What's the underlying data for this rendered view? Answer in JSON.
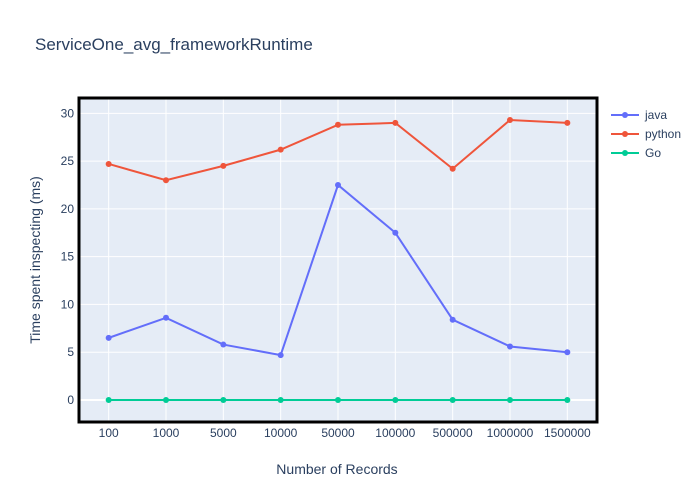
{
  "chart_data": {
    "type": "line",
    "title": "ServiceOne_avg_frameworkRuntime",
    "xlabel": "Number of Records",
    "ylabel": "Time spent inspecting (ms)",
    "categories": [
      "100",
      "1000",
      "5000",
      "10000",
      "50000",
      "100000",
      "500000",
      "1000000",
      "1500000"
    ],
    "ylim": [
      -2.2,
      31.5
    ],
    "yticks": [
      0,
      5,
      10,
      15,
      20,
      25,
      30
    ],
    "grid": true,
    "legend_position": "top-right",
    "series": [
      {
        "name": "java",
        "color": "#636efa",
        "values": [
          6.5,
          8.6,
          5.8,
          4.7,
          22.5,
          17.5,
          8.4,
          5.6,
          5.0
        ]
      },
      {
        "name": "python",
        "color": "#ef553b",
        "values": [
          24.7,
          23.0,
          24.5,
          26.2,
          28.8,
          29.0,
          24.2,
          29.3,
          29.0
        ]
      },
      {
        "name": "Go",
        "color": "#00cc96",
        "values": [
          0,
          0,
          0,
          0,
          0,
          0,
          0,
          0,
          0
        ]
      }
    ]
  }
}
